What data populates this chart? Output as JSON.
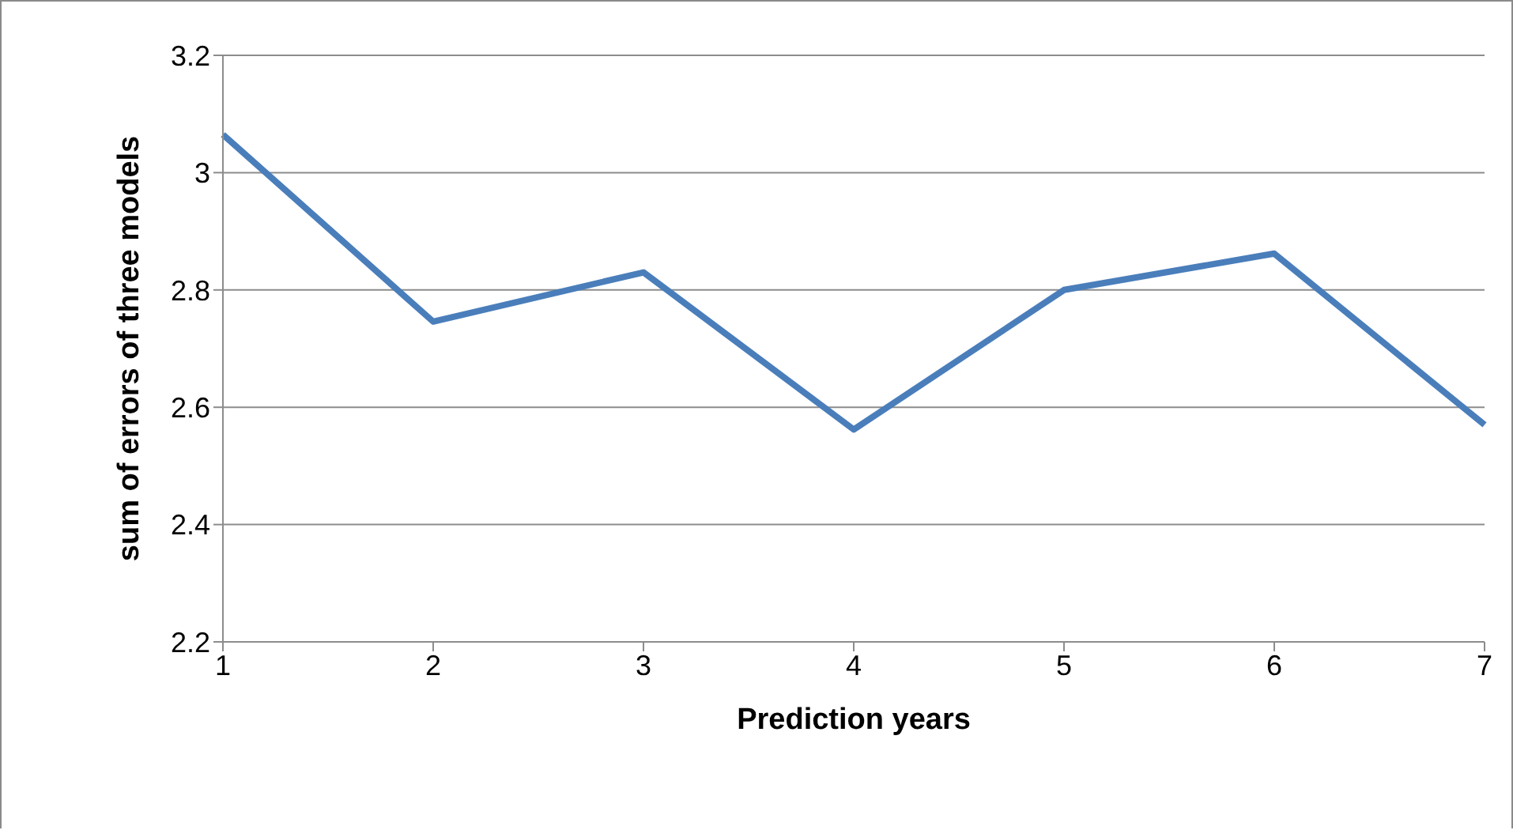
{
  "chart_data": {
    "type": "line",
    "xlabel": "Prediction years",
    "ylabel": "sum of errors  of three models",
    "categories": [
      "1",
      "2",
      "3",
      "4",
      "5",
      "6",
      "7"
    ],
    "series": [
      {
        "color": "#4a7ebb",
        "values": [
          3.065,
          2.746,
          2.83,
          2.562,
          2.8,
          2.862,
          2.57
        ]
      }
    ],
    "ylim": [
      2.2,
      3.2
    ],
    "yticks": [
      2.2,
      2.4,
      2.6,
      2.8,
      3,
      3.2
    ],
    "grid": "y",
    "marker": "none",
    "line_style": "solid",
    "legend": false
  }
}
